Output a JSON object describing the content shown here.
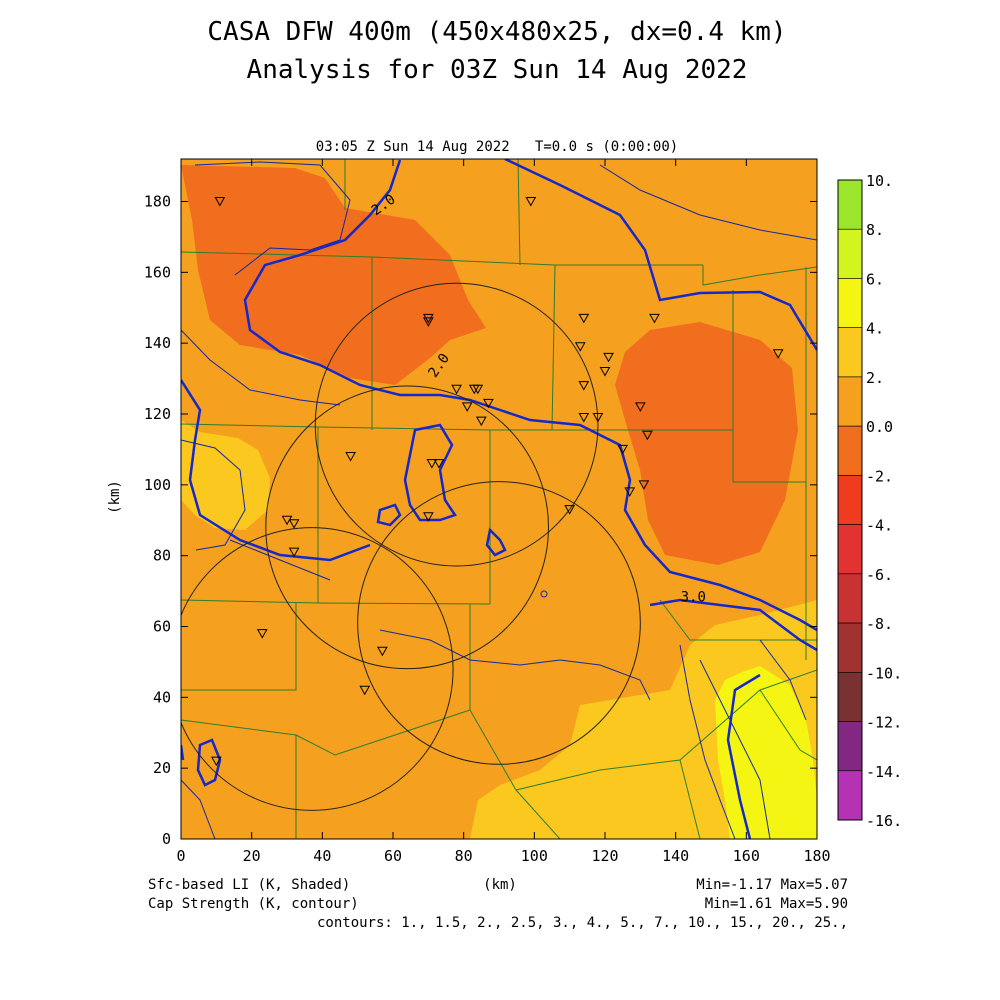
{
  "chart_data": {
    "type": "heatmap",
    "title_line1": "CASA DFW 400m (450x480x25, dx=0.4 km)",
    "title_line2": "Analysis for 03Z Sun 14 Aug 2022",
    "subtitle": "03:05 Z Sun 14 Aug 2022   T=0.0 s (0:00:00)",
    "xlabel": "(km)",
    "ylabel": "(km)",
    "xlim": [
      0,
      180
    ],
    "ylim": [
      0,
      192
    ],
    "x_ticks": [
      "0",
      "20",
      "40",
      "60",
      "80",
      "100",
      "120",
      "140",
      "160",
      "180"
    ],
    "y_ticks": [
      "0",
      "20",
      "40",
      "60",
      "80",
      "100",
      "120",
      "140",
      "160",
      "180"
    ],
    "shaded_field": "Sfc-based LI (K, Shaded)",
    "contour_field": "Cap Strength (K, contour)",
    "shaded_stats": "Min=-1.17 Max=5.07",
    "contour_stats": "Min=1.61 Max=5.90",
    "contours_text": "contours: 1., 1.5, 2., 2.5, 3., 4., 5., 7., 10., 15., 20., 25.,",
    "contour_labels": [
      {
        "text": "2.0",
        "x": 58,
        "y": 178
      },
      {
        "text": "2.0",
        "x": 74,
        "y": 133
      },
      {
        "text": "3.0",
        "x": 145,
        "y": 67
      }
    ],
    "colorbar": {
      "labels": [
        "10.",
        "8.",
        "6.",
        "4.",
        "2.",
        "0.0",
        "-2.",
        "-4.",
        "-6.",
        "-8.",
        "-10.",
        "-12.",
        "-14.",
        "-16."
      ],
      "colors": [
        "#9be62a",
        "#d2f522",
        "#f5f514",
        "#fac81e",
        "#f5a01e",
        "#f06e1e",
        "#f03c1e",
        "#e23232",
        "#c83232",
        "#a03232",
        "#783232",
        "#822882",
        "#b432b4",
        "#dc3cdc"
      ]
    },
    "station_markers": [
      [
        11,
        180
      ],
      [
        99,
        180
      ],
      [
        70,
        147
      ],
      [
        70,
        146
      ],
      [
        114,
        147
      ],
      [
        134,
        147
      ],
      [
        113,
        139
      ],
      [
        121,
        136
      ],
      [
        120,
        132
      ],
      [
        169,
        137
      ],
      [
        114,
        128
      ],
      [
        78,
        127
      ],
      [
        83,
        127
      ],
      [
        84,
        127
      ],
      [
        87,
        123
      ],
      [
        81,
        122
      ],
      [
        130,
        122
      ],
      [
        85,
        118
      ],
      [
        114,
        119
      ],
      [
        118,
        119
      ],
      [
        132,
        114
      ],
      [
        48,
        108
      ],
      [
        71,
        106
      ],
      [
        73,
        106
      ],
      [
        125,
        110
      ],
      [
        131,
        100
      ],
      [
        127,
        98
      ],
      [
        110,
        93
      ],
      [
        70,
        91
      ],
      [
        30,
        90
      ],
      [
        32,
        89
      ],
      [
        32,
        81
      ],
      [
        23,
        58
      ],
      [
        57,
        53
      ],
      [
        52,
        42
      ],
      [
        10,
        22
      ]
    ],
    "radar_rings": [
      {
        "center": [
          78,
          117
        ],
        "radius": 40
      },
      {
        "center": [
          64,
          88
        ],
        "radius": 40
      },
      {
        "center": [
          37,
          48
        ],
        "radius": 40
      },
      {
        "center": [
          90,
          61
        ],
        "radius": 40
      }
    ]
  }
}
